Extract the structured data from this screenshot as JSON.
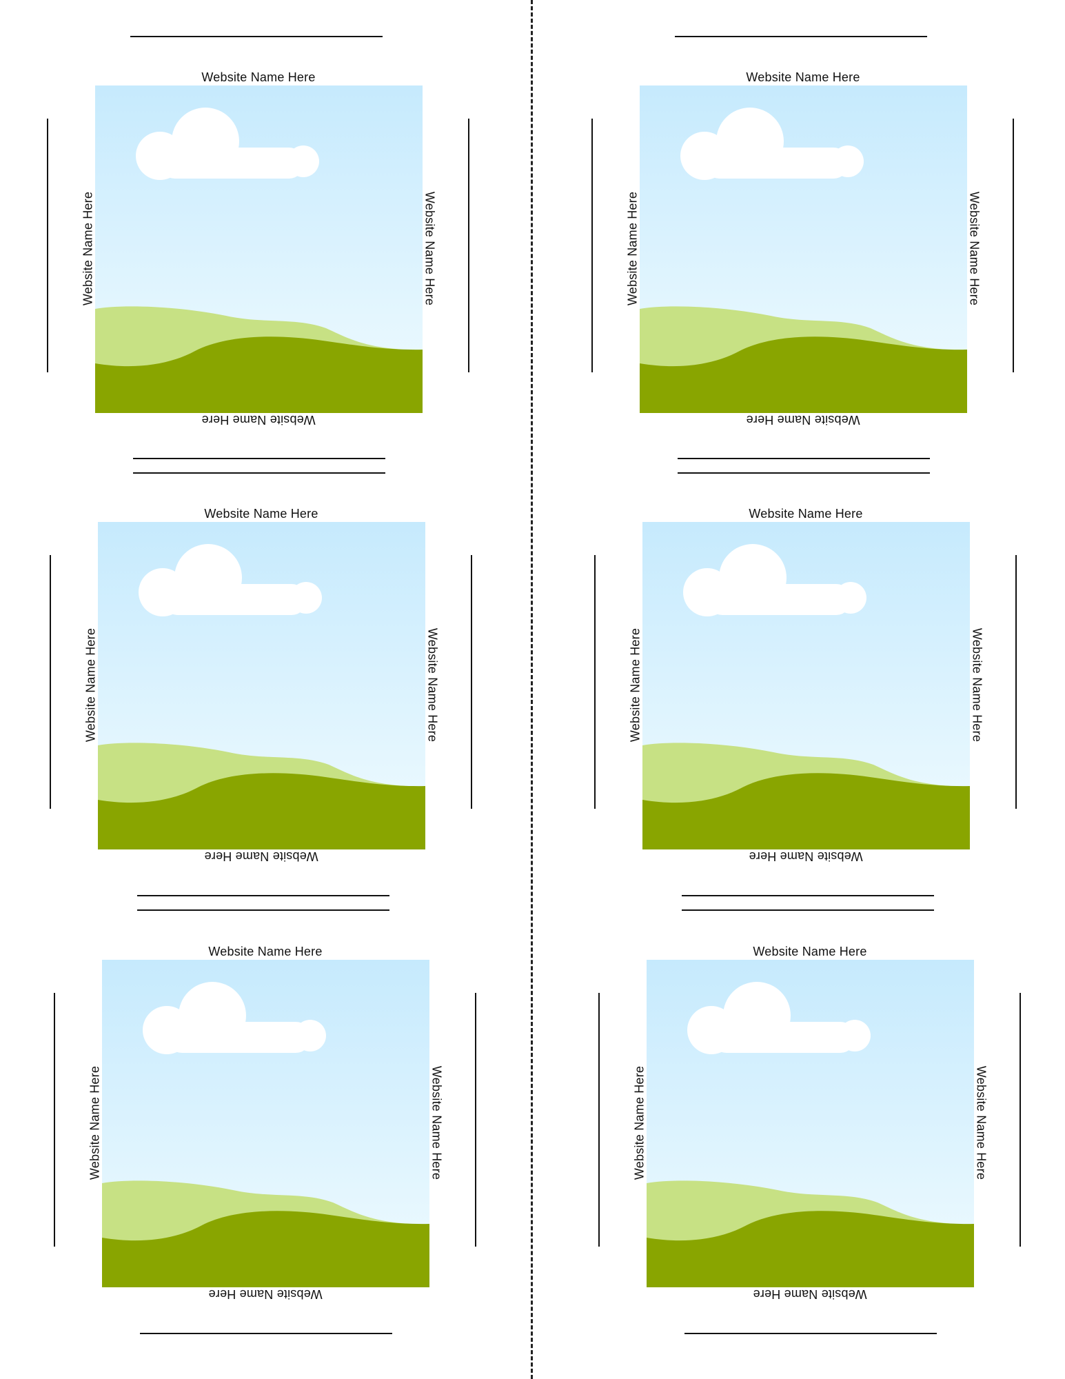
{
  "sheet": {
    "cards": [
      {
        "top_label": "Website Name Here",
        "left_label": "Website Name Here",
        "right_label": "Website Name Here",
        "bottom_label": "Website Name Here"
      },
      {
        "top_label": "Website Name Here",
        "left_label": "Website Name Here",
        "right_label": "Website Name Here",
        "bottom_label": "Website Name Here"
      },
      {
        "top_label": "Website Name Here",
        "left_label": "Website Name Here",
        "right_label": "Website Name Here",
        "bottom_label": "Website Name Here"
      },
      {
        "top_label": "Website Name Here",
        "left_label": "Website Name Here",
        "right_label": "Website Name Here",
        "bottom_label": "Website Name Here"
      },
      {
        "top_label": "Website Name Here",
        "left_label": "Website Name Here",
        "right_label": "Website Name Here",
        "bottom_label": "Website Name Here"
      },
      {
        "top_label": "Website Name Here",
        "left_label": "Website Name Here",
        "right_label": "Website Name Here",
        "bottom_label": "Website Name Here"
      }
    ]
  },
  "colors": {
    "sky_top": "#c6eafd",
    "sky_bottom": "#f0fbff",
    "hill_light": "#c7e184",
    "hill_dark": "#89a500",
    "cloud": "#ffffff",
    "line": "#111111"
  },
  "icons": {
    "scene": "landscape-placeholder-image",
    "cloud": "cloud-icon"
  }
}
